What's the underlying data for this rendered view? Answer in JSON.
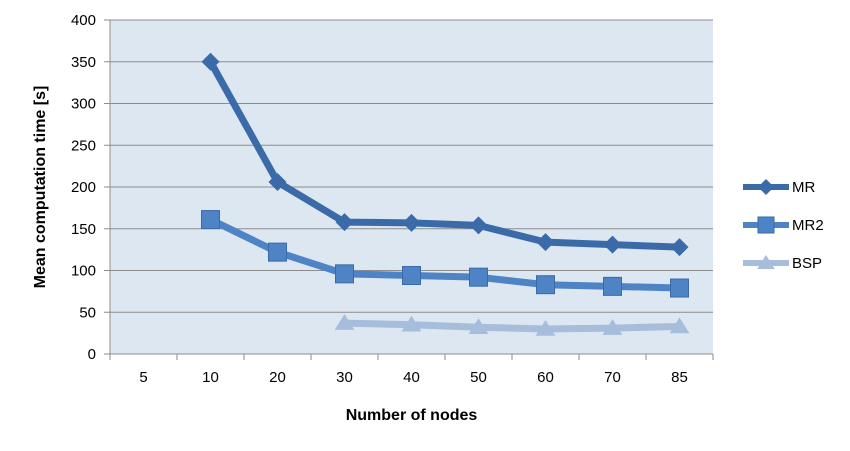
{
  "chart_data": {
    "type": "line",
    "categories": [
      "5",
      "10",
      "20",
      "30",
      "40",
      "50",
      "60",
      "70",
      "85"
    ],
    "series": [
      {
        "name": "MR",
        "color": "#3A6AA8",
        "marker": "diamond",
        "values": [
          null,
          350,
          206,
          158,
          157,
          154,
          134,
          131,
          128
        ]
      },
      {
        "name": "MR2",
        "color": "#4E84C5",
        "marker": "square",
        "values": [
          null,
          161,
          122,
          96,
          94,
          92,
          83,
          81,
          79
        ]
      },
      {
        "name": "BSP",
        "color": "#A6BDDC",
        "marker": "triangle",
        "values": [
          null,
          null,
          null,
          37,
          35,
          32,
          30,
          31,
          33
        ]
      }
    ],
    "xlabel": "Number of nodes",
    "ylabel": "Mean computation  time [s]",
    "ylim": [
      0,
      400
    ],
    "yticks": [
      0,
      50,
      100,
      150,
      200,
      250,
      300,
      350,
      400
    ],
    "grid": true,
    "plot_background": "#DDE7F1",
    "legend_position": "right"
  }
}
